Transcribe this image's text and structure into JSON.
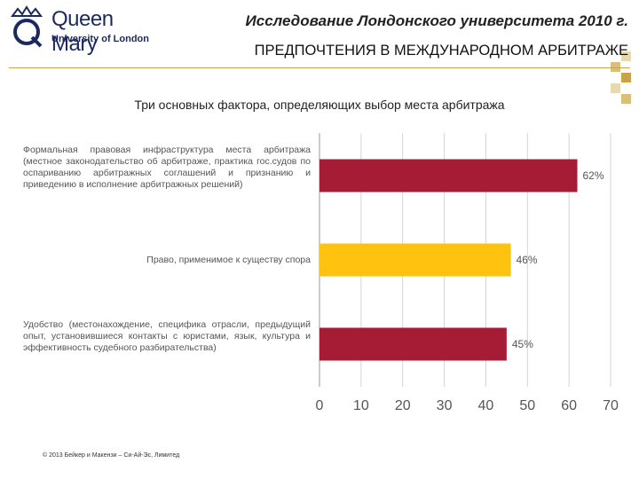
{
  "header": {
    "logo": {
      "name": "Queen Mary",
      "sub": "University of London",
      "icon": "crown-q-crest-icon"
    },
    "title_line1": "Исследование Лондонского университета 2010 г.",
    "title_line2": "ПРЕДПОЧТЕНИЯ В МЕЖДУНАРОДНОМ АРБИТРАЖЕ",
    "accent_color": "#c9a24a"
  },
  "chart_data": {
    "type": "bar",
    "orientation": "horizontal",
    "title": "Три основных фактора, определяющих выбор места арбитража",
    "categories": [
      "Формальная правовая инфраструктура места арбитража (местное законодательство об арбитраже, практика гос.судов по оспариванию арбитражных соглашений и признанию и приведению в исполнение арбитражных решений)",
      "Право, применимое к существу спора",
      "Удобство (местонахождение, специфика отрасли, предыдущий опыт, установившиеся контакты с юристами, язык, культура и эффективность судебного разбирательства)"
    ],
    "values": [
      62,
      46,
      45
    ],
    "data_labels": [
      "62%",
      "46%",
      "45%"
    ],
    "colors": [
      "#a61c35",
      "#ffc20e",
      "#a61c35"
    ],
    "xlim": [
      0,
      70
    ],
    "xticks": [
      "0",
      "10",
      "20",
      "30",
      "40",
      "50",
      "60",
      "70"
    ],
    "grid": true
  },
  "footer": {
    "copyright": "© 2013 Бейкер и Макензи – Си-Ай-Эс, Лимитед"
  }
}
